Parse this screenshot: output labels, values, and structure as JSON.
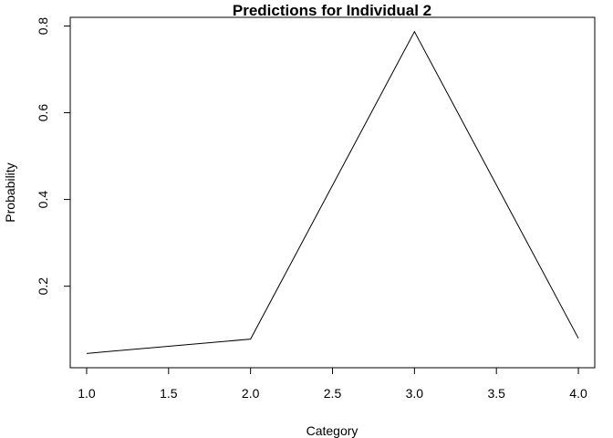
{
  "chart_data": {
    "type": "line",
    "title": "Predictions for Individual 2",
    "xlabel": "Category",
    "ylabel": "Probability",
    "x": [
      1,
      2,
      3,
      4
    ],
    "series": [
      {
        "values": [
          0.045,
          0.078,
          0.787,
          0.08
        ]
      }
    ],
    "xlim": [
      0.9,
      4.1
    ],
    "ylim": [
      0.012,
      0.82
    ],
    "xticks": [
      1.0,
      1.5,
      2.0,
      2.5,
      3.0,
      3.5,
      4.0
    ],
    "xtick_labels": [
      "1.0",
      "1.5",
      "2.0",
      "2.5",
      "3.0",
      "3.5",
      "4.0"
    ],
    "yticks": [
      0.2,
      0.4,
      0.6,
      0.8
    ],
    "ytick_labels": [
      "0.2",
      "0.4",
      "0.6",
      "0.8"
    ],
    "grid": false,
    "line_color": "#000000"
  }
}
